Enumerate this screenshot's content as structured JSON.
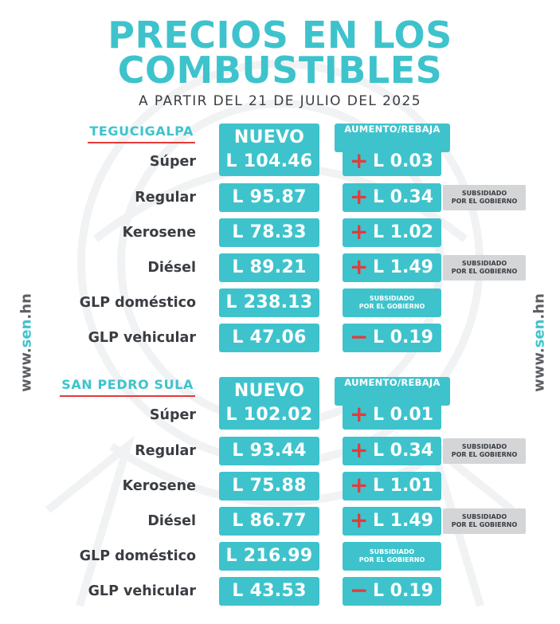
{
  "colors": {
    "teal": "#3ec3cc",
    "red": "#e53a3a",
    "dark": "#3a3d42",
    "note_bg": "#d4d5d6"
  },
  "header": {
    "title_line1": "PRECIOS EN LOS",
    "title_line2": "COMBUSTIBLES",
    "subtitle": "A PARTIR DEL 21 DE JULIO DEL 2025"
  },
  "side_url": {
    "prefix": "www.",
    "highlight": "sen",
    "suffix": ".hn"
  },
  "columns": {
    "price": "NUEVO PRECIO",
    "change": "AUMENTO/REBAJA"
  },
  "note": {
    "line1": "SUBSIDIADO",
    "line2": "POR EL GOBIERNO"
  },
  "sections": [
    {
      "city": "TEGUCIGALPA",
      "rows": [
        {
          "fuel": "Súper",
          "price": "L 104.46",
          "sign": "+",
          "change": "L 0.03",
          "note": false
        },
        {
          "fuel": "Regular",
          "price": "L 95.87",
          "sign": "+",
          "change": "L 0.34",
          "note": true
        },
        {
          "fuel": "Kerosene",
          "price": "L 78.33",
          "sign": "+",
          "change": "L 1.02",
          "note": false
        },
        {
          "fuel": "Diésel",
          "price": "L 89.21",
          "sign": "+",
          "change": "L 1.49",
          "note": true
        },
        {
          "fuel": "GLP doméstico",
          "price": "L 238.13",
          "sign": "",
          "change": "",
          "note": false,
          "subsidized_in_box": true
        },
        {
          "fuel": "GLP vehicular",
          "price": "L 47.06",
          "sign": "−",
          "change": "L 0.19",
          "note": false
        }
      ]
    },
    {
      "city": "SAN PEDRO SULA",
      "rows": [
        {
          "fuel": "Súper",
          "price": "L 102.02",
          "sign": "+",
          "change": "L 0.01",
          "note": false
        },
        {
          "fuel": "Regular",
          "price": "L 93.44",
          "sign": "+",
          "change": "L 0.34",
          "note": true
        },
        {
          "fuel": "Kerosene",
          "price": "L 75.88",
          "sign": "+",
          "change": "L 1.01",
          "note": false
        },
        {
          "fuel": "Diésel",
          "price": "L 86.77",
          "sign": "+",
          "change": "L 1.49",
          "note": true
        },
        {
          "fuel": "GLP doméstico",
          "price": "L 216.99",
          "sign": "",
          "change": "",
          "note": false,
          "subsidized_in_box": true
        },
        {
          "fuel": "GLP vehicular",
          "price": "L 43.53",
          "sign": "−",
          "change": "L 0.19",
          "note": false
        }
      ]
    }
  ]
}
